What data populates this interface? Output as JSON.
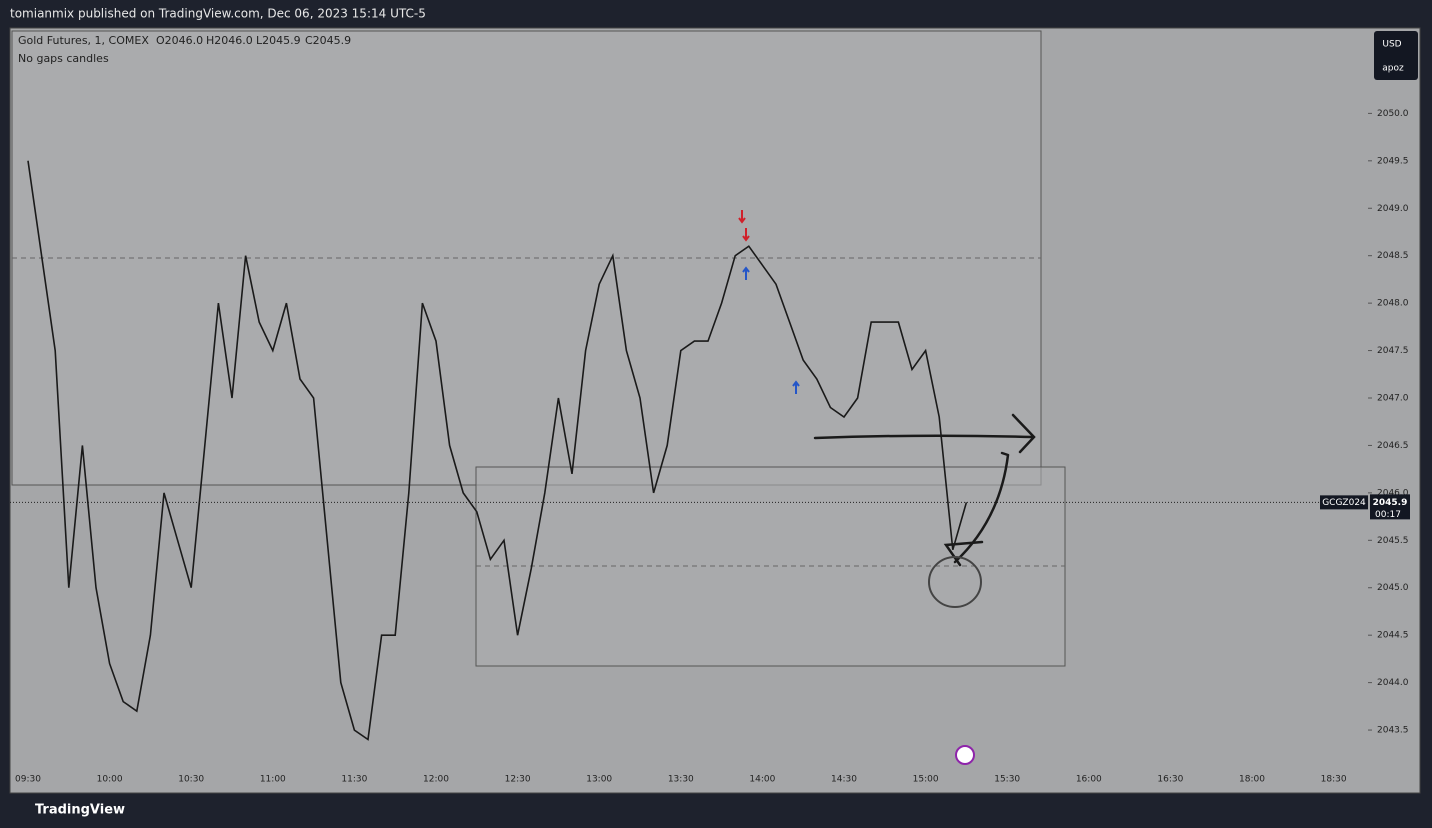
{
  "header": "tomianmix published on TradingView.com, Dec 06, 2023 15:14 UTC-5",
  "footer_brand": "TradingView",
  "currency": "USD",
  "account": "apoz",
  "chart_data": {
    "type": "line",
    "legend_ohlc": [
      "O2046.0",
      "H2046.0",
      "L2045.9",
      "C2045.9"
    ],
    "subtitle": "No gaps candles",
    "symbol": "GCGZ024",
    "last_price": 2045.9,
    "countdown": "00:17",
    "xticks": [
      "09:30",
      "10:00",
      "10:30",
      "11:00",
      "11:30",
      "12:00",
      "12:30",
      "13:00",
      "13:30",
      "14:00",
      "14:30",
      "15:00",
      "15:30",
      "16:00",
      "16:30",
      "18:00",
      "18:30"
    ],
    "ylim": [
      2043.1,
      2050.9
    ],
    "yticks": [
      2043.5,
      {
        "value": 2044,
        "label": "2044.0"
      },
      2044.5,
      {
        "value": 2045,
        "label": "2045.0"
      },
      2045.5,
      {
        "value": 2046,
        "label": "2046.0"
      },
      2046.5,
      {
        "value": 2047,
        "label": "2047.0"
      },
      2047.5,
      {
        "value": 2048,
        "label": "2048.0"
      },
      2048.5,
      {
        "value": 2049,
        "label": "2049.0"
      },
      2049.5,
      {
        "value": 2050,
        "label": "2050.0"
      }
    ],
    "series": [
      {
        "name": "Gold Futures, 1, COMEX",
        "color": "#1a1a1a",
        "x": [
          "09:30",
          "09:35",
          "09:40",
          "09:45",
          "09:50",
          "09:55",
          "10:00",
          "10:05",
          "10:10",
          "10:15",
          "10:20",
          "10:25",
          "10:30",
          "10:35",
          "10:40",
          "10:45",
          "10:50",
          "10:55",
          "11:00",
          "11:05",
          "11:10",
          "11:15",
          "11:20",
          "11:25",
          "11:30",
          "11:35",
          "11:40",
          "11:45",
          "11:50",
          "11:55",
          "12:00",
          "12:05",
          "12:10",
          "12:15",
          "12:20",
          "12:25",
          "12:30",
          "12:35",
          "12:40",
          "12:45",
          "12:50",
          "12:55",
          "13:00",
          "13:05",
          "13:10",
          "13:15",
          "13:20",
          "13:25",
          "13:30",
          "13:35",
          "13:40",
          "13:45",
          "13:50",
          "13:55",
          "14:00",
          "14:05",
          "14:10",
          "14:15",
          "14:20",
          "14:25",
          "14:30",
          "14:35",
          "14:40",
          "14:45",
          "14:50",
          "14:55",
          "15:00",
          "15:05",
          "15:10",
          "15:15"
        ],
        "values": [
          2049.5,
          2048.5,
          2047.5,
          2045.0,
          2046.5,
          2045.0,
          2044.2,
          2043.8,
          2043.7,
          2044.5,
          2046.0,
          2045.5,
          2045.0,
          2046.5,
          2048.0,
          2047.0,
          2048.5,
          2047.8,
          2047.5,
          2048.0,
          2047.2,
          2047.0,
          2045.5,
          2044.0,
          2043.5,
          2043.4,
          2044.5,
          2044.5,
          2046.0,
          2048.0,
          2047.6,
          2046.5,
          2046.0,
          2045.8,
          2045.3,
          2045.5,
          2044.5,
          2045.2,
          2046.0,
          2047.0,
          2046.2,
          2047.5,
          2048.2,
          2048.5,
          2047.5,
          2047.0,
          2046.0,
          2046.5,
          2047.5,
          2047.6,
          2047.6,
          2048.0,
          2048.5,
          2048.6,
          2048.4,
          2048.2,
          2047.8,
          2047.4,
          2047.2,
          2046.9,
          2046.8,
          2047.0,
          2047.8,
          2047.8,
          2047.8,
          2047.3,
          2047.5,
          2046.8,
          2045.4,
          2045.9
        ]
      }
    ]
  }
}
